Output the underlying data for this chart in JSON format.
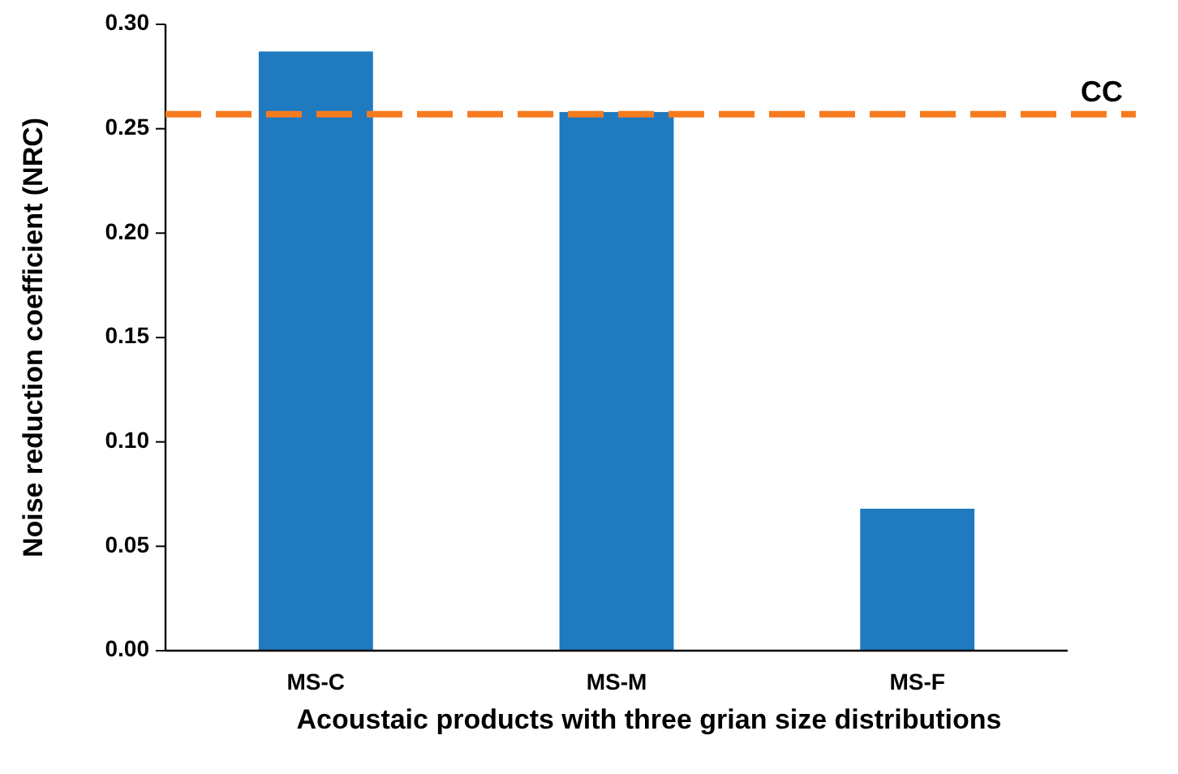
{
  "chart_data": {
    "type": "bar",
    "xlabel": "Acoustaic products with three grian size distributions",
    "ylabel": "Noise reduction coefficient (NRC)",
    "categories": [
      "MS-C",
      "MS-M",
      "MS-F"
    ],
    "values": [
      0.287,
      0.258,
      0.068
    ],
    "color": "#1f7ac0",
    "ylim": [
      0,
      0.3
    ],
    "yticks": [
      {
        "value": 0,
        "label": "0.00"
      },
      {
        "value": 0.05,
        "label": "0.05"
      },
      {
        "value": 0.1,
        "label": "0.10"
      },
      {
        "value": 0.15,
        "label": "0.15"
      },
      {
        "value": 0.2,
        "label": "0.20"
      },
      {
        "value": 0.25,
        "label": "0.25"
      },
      {
        "value": 0.3,
        "label": "0.30"
      }
    ],
    "ref_lines": [
      {
        "axis": "y",
        "value": 0.257,
        "label": "CC",
        "color": "#f57b20",
        "line_style": "dashed"
      }
    ],
    "grid": false
  }
}
